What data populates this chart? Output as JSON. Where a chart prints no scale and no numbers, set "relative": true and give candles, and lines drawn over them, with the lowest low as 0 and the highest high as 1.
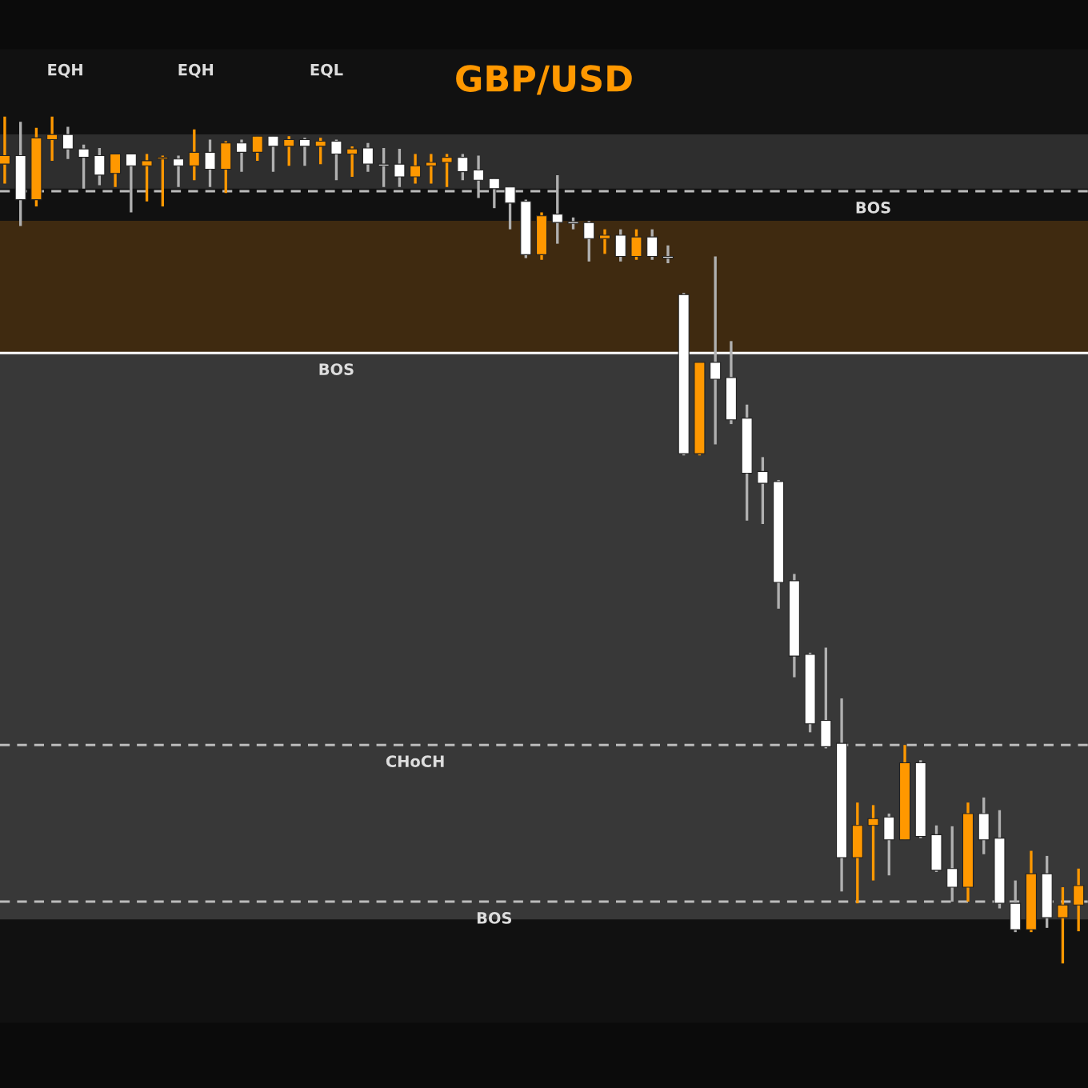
{
  "chart_data": {
    "type": "candlestick",
    "title": "GBP/USD",
    "relative": true,
    "categories": [
      null,
      null,
      null,
      null,
      null,
      null,
      null,
      null,
      null,
      null,
      null,
      null,
      null,
      null,
      null,
      null,
      null,
      null,
      null,
      null,
      null,
      null,
      null,
      null,
      null,
      null,
      null,
      null,
      null,
      null,
      null,
      null,
      null,
      null,
      null,
      null,
      null,
      null,
      null,
      null,
      null,
      null,
      null,
      null,
      null,
      null,
      null,
      null,
      null,
      null,
      null,
      null,
      null,
      null,
      null,
      null,
      null,
      null,
      null,
      null,
      null,
      null,
      null,
      null,
      null,
      null,
      null,
      null,
      null
    ],
    "ohlc": [
      [
        0.944,
        1.0,
        0.921,
        0.954
      ],
      [
        0.954,
        0.994,
        0.871,
        0.902
      ],
      [
        0.902,
        0.987,
        0.894,
        0.975
      ],
      [
        0.973,
        1.0,
        0.948,
        0.979
      ],
      [
        0.979,
        0.988,
        0.95,
        0.962
      ],
      [
        0.962,
        0.967,
        0.915,
        0.952
      ],
      [
        0.954,
        0.963,
        0.919,
        0.931
      ],
      [
        0.933,
        0.956,
        0.917,
        0.956
      ],
      [
        0.956,
        0.956,
        0.887,
        0.942
      ],
      [
        0.942,
        0.956,
        0.9,
        0.948
      ],
      [
        0.95,
        0.954,
        0.894,
        0.952
      ],
      [
        0.95,
        0.954,
        0.917,
        0.942
      ],
      [
        0.942,
        0.985,
        0.925,
        0.958
      ],
      [
        0.958,
        0.973,
        0.917,
        0.938
      ],
      [
        0.938,
        0.971,
        0.91,
        0.969
      ],
      [
        0.969,
        0.973,
        0.935,
        0.958
      ],
      [
        0.958,
        0.977,
        0.948,
        0.977
      ],
      [
        0.977,
        0.977,
        0.935,
        0.965
      ],
      [
        0.965,
        0.977,
        0.942,
        0.973
      ],
      [
        0.973,
        0.975,
        0.942,
        0.965
      ],
      [
        0.965,
        0.975,
        0.944,
        0.971
      ],
      [
        0.971,
        0.973,
        0.925,
        0.956
      ],
      [
        0.956,
        0.965,
        0.929,
        0.962
      ],
      [
        0.963,
        0.969,
        0.935,
        0.944
      ],
      [
        0.943,
        0.963,
        0.917,
        0.942
      ],
      [
        0.944,
        0.962,
        0.917,
        0.929
      ],
      [
        0.929,
        0.956,
        0.921,
        0.942
      ],
      [
        0.942,
        0.956,
        0.921,
        0.946
      ],
      [
        0.946,
        0.956,
        0.917,
        0.952
      ],
      [
        0.952,
        0.956,
        0.925,
        0.935
      ],
      [
        0.937,
        0.954,
        0.904,
        0.925
      ],
      [
        0.927,
        0.927,
        0.892,
        0.915
      ],
      [
        0.917,
        0.917,
        0.867,
        0.898
      ],
      [
        0.9,
        0.902,
        0.833,
        0.837
      ],
      [
        0.837,
        0.887,
        0.831,
        0.883
      ],
      [
        0.885,
        0.931,
        0.85,
        0.875
      ],
      [
        0.876,
        0.881,
        0.867,
        0.874
      ],
      [
        0.875,
        0.877,
        0.829,
        0.856
      ],
      [
        0.856,
        0.867,
        0.838,
        0.86
      ],
      [
        0.86,
        0.867,
        0.829,
        0.835
      ],
      [
        0.835,
        0.867,
        0.831,
        0.858
      ],
      [
        0.858,
        0.867,
        0.831,
        0.835
      ],
      [
        0.834,
        0.848,
        0.827,
        0.833
      ],
      [
        0.79,
        0.792,
        0.6,
        0.602
      ],
      [
        0.602,
        0.71,
        0.6,
        0.71
      ],
      [
        0.71,
        0.835,
        0.613,
        0.69
      ],
      [
        0.692,
        0.735,
        0.637,
        0.642
      ],
      [
        0.644,
        0.66,
        0.523,
        0.579
      ],
      [
        0.581,
        0.598,
        0.519,
        0.567
      ],
      [
        0.569,
        0.571,
        0.419,
        0.45
      ],
      [
        0.452,
        0.46,
        0.338,
        0.363
      ],
      [
        0.365,
        0.367,
        0.273,
        0.283
      ],
      [
        0.287,
        0.373,
        0.254,
        0.256
      ],
      [
        0.26,
        0.313,
        0.085,
        0.125
      ],
      [
        0.125,
        0.19,
        0.071,
        0.163
      ],
      [
        0.163,
        0.187,
        0.098,
        0.171
      ],
      [
        0.173,
        0.177,
        0.104,
        0.146
      ],
      [
        0.146,
        0.258,
        0.146,
        0.237
      ],
      [
        0.237,
        0.24,
        0.148,
        0.15
      ],
      [
        0.152,
        0.163,
        0.108,
        0.11
      ],
      [
        0.112,
        0.162,
        0.073,
        0.09
      ],
      [
        0.09,
        0.19,
        0.073,
        0.177
      ],
      [
        0.177,
        0.196,
        0.129,
        0.146
      ],
      [
        0.148,
        0.181,
        0.065,
        0.071
      ],
      [
        0.071,
        0.098,
        0.037,
        0.04
      ],
      [
        0.04,
        0.133,
        0.037,
        0.106
      ],
      [
        0.106,
        0.127,
        0.042,
        0.054
      ],
      [
        0.054,
        0.09,
        0.0,
        0.069
      ],
      [
        0.069,
        0.112,
        0.038,
        0.092
      ]
    ],
    "colors": [
      "#ff9800",
      "#ffffff",
      "#ff9800",
      "#ff9800",
      "#ffffff",
      "#ffffff",
      "#ffffff",
      "#ff9800",
      "#ffffff",
      "#ff9800",
      "#ff9800",
      "#ffffff",
      "#ff9800",
      "#ffffff",
      "#ff9800",
      "#ffffff",
      "#ff9800",
      "#ffffff",
      "#ff9800",
      "#ffffff",
      "#ff9800",
      "#ffffff",
      "#ff9800",
      "#ffffff",
      "#ffffff",
      "#ffffff",
      "#ff9800",
      "#ff9800",
      "#ff9800",
      "#ffffff",
      "#ffffff",
      "#ffffff",
      "#ffffff",
      "#ffffff",
      "#ff9800",
      "#ffffff",
      "#ffffff",
      "#ffffff",
      "#ff9800",
      "#ffffff",
      "#ff9800",
      "#ffffff",
      "#ffffff",
      "#ffffff",
      "#ff9800",
      "#ffffff",
      "#ffffff",
      "#ffffff",
      "#ffffff",
      "#ffffff",
      "#ffffff",
      "#ffffff",
      "#ffffff",
      "#ffffff",
      "#ff9800",
      "#ff9800",
      "#ffffff",
      "#ff9800",
      "#ffffff",
      "#ffffff",
      "#ffffff",
      "#ff9800",
      "#ffffff",
      "#ffffff",
      "#ffffff",
      "#ff9800",
      "#ffffff",
      "#ff9800",
      "#ff9800"
    ],
    "bands": [
      {
        "axis": "y",
        "from": 0.915,
        "to": 0.979,
        "color": "#2e2e2e"
      },
      {
        "axis": "y",
        "from": 0.721,
        "to": 0.877,
        "color": "#3f2a10"
      },
      {
        "axis": "y",
        "from": 0.052,
        "to": 0.721,
        "color": "#383838"
      }
    ],
    "ref_lines": [
      {
        "axis": "y",
        "value": 0.721,
        "label": "BOS",
        "color": "#ffffff",
        "line_style": "solid"
      },
      {
        "axis": "y",
        "value": 0.912,
        "label": "BOS",
        "color": "#bbbbbb",
        "line_style": "dashed"
      },
      {
        "axis": "y",
        "value": 0.258,
        "label": "CHoCH",
        "color": "#bbbbbb",
        "line_style": "dashed"
      },
      {
        "axis": "y",
        "value": 0.073,
        "label": "BOS",
        "color": "#bbbbbb",
        "line_style": "dashed"
      }
    ],
    "annotations": [
      "EQH",
      "EQH",
      "EQL"
    ]
  }
}
